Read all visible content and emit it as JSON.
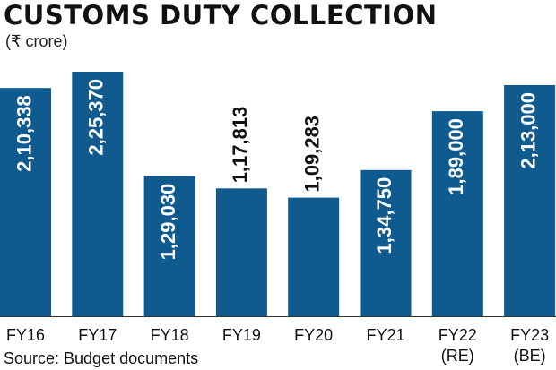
{
  "chart_data": {
    "type": "bar",
    "title": "CUSTOMS DUTY COLLECTION",
    "subtitle": "(₹ crore)",
    "source": "Source: Budget documents",
    "categories": [
      {
        "line1": "FY16",
        "line2": ""
      },
      {
        "line1": "FY17",
        "line2": ""
      },
      {
        "line1": "FY18",
        "line2": ""
      },
      {
        "line1": "FY19",
        "line2": ""
      },
      {
        "line1": "FY20",
        "line2": ""
      },
      {
        "line1": "FY21",
        "line2": ""
      },
      {
        "line1": "FY22",
        "line2": "(RE)"
      },
      {
        "line1": "FY23",
        "line2": "(BE)"
      }
    ],
    "values": [
      210338,
      225370,
      129030,
      117813,
      109283,
      134750,
      189000,
      213000
    ],
    "data_labels": [
      "2,10,338",
      "2,25,370",
      "1,29,030",
      "1,17,813",
      "1,09,283",
      "1,34,750",
      "1,89,000",
      "2,13,000"
    ],
    "ylim": [
      0,
      225370
    ],
    "grid": false,
    "bar_color": "#0f5a8f",
    "label_color_inside": "#ffffff",
    "label_color_outside": "#111111"
  }
}
